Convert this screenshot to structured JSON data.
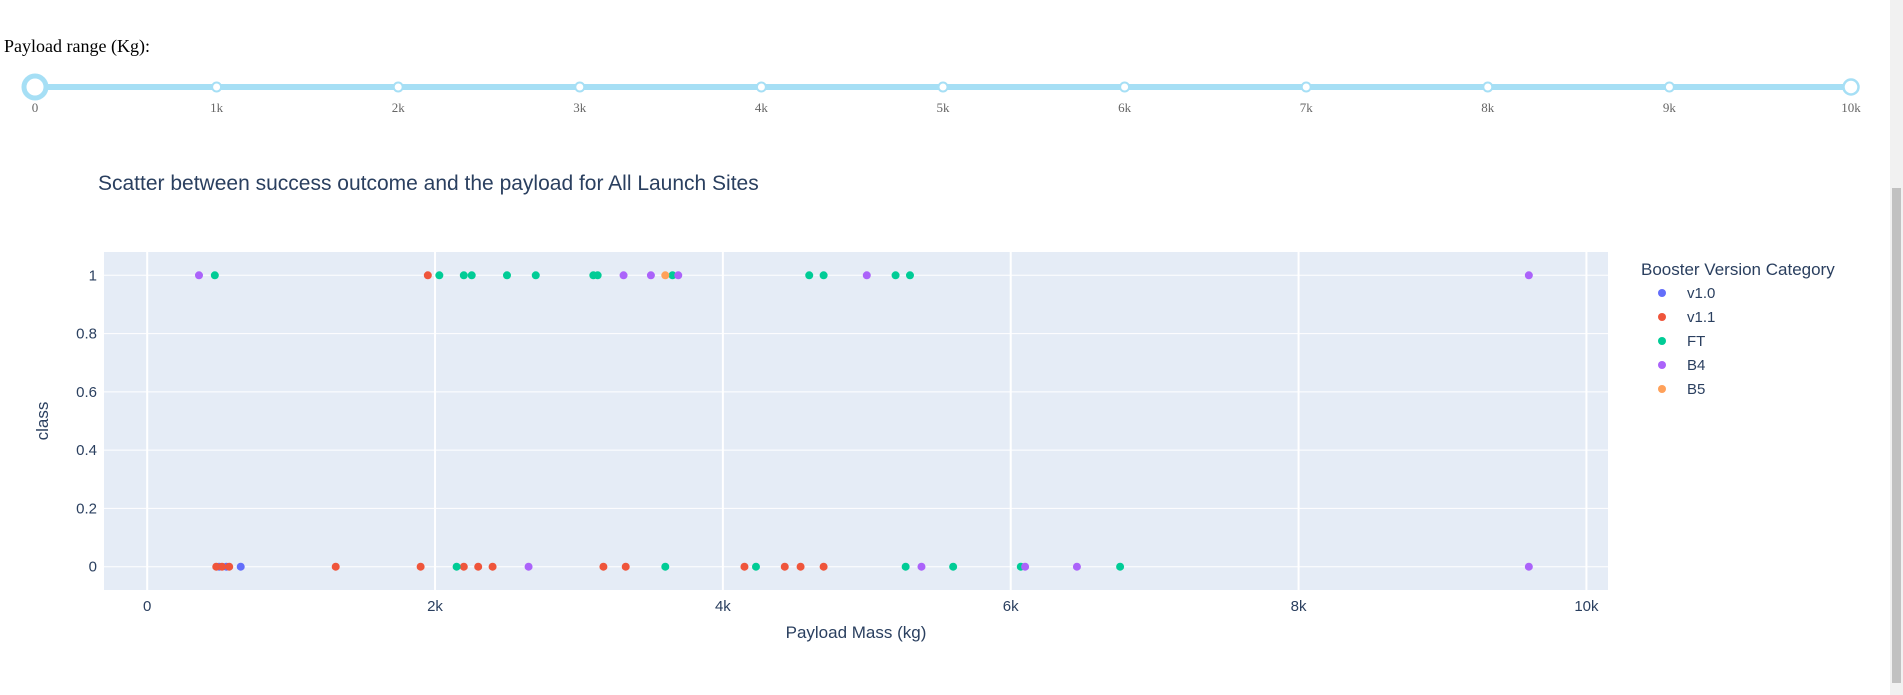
{
  "slider": {
    "label": "Payload range (Kg):",
    "min": 0,
    "max": 10000,
    "value_low": 0,
    "value_high": 10000,
    "marks": [
      "0",
      "1k",
      "2k",
      "3k",
      "4k",
      "5k",
      "6k",
      "7k",
      "8k",
      "9k",
      "10k"
    ],
    "track_color": "#a6dff5",
    "handle_color": "#a6dff5"
  },
  "chart_data": {
    "type": "scatter",
    "title": "Scatter between success outcome and the payload for All Launch Sites",
    "xlabel": "Payload Mass (kg)",
    "ylabel": "class",
    "xlim": [
      -300,
      10150
    ],
    "ylim": [
      -0.08,
      1.08
    ],
    "x_ticks": [
      0,
      2000,
      4000,
      6000,
      8000,
      10000
    ],
    "x_tick_labels": [
      "0",
      "2k",
      "4k",
      "6k",
      "8k",
      "10k"
    ],
    "y_ticks": [
      0,
      0.2,
      0.4,
      0.6,
      0.8,
      1
    ],
    "y_tick_labels": [
      "0",
      "0.2",
      "0.4",
      "0.6",
      "0.8",
      "1"
    ],
    "grid": true,
    "plot_bg": "#e5ecf6",
    "legend_title": "Booster Version Category",
    "legend_position": "right",
    "series": [
      {
        "name": "v1.0",
        "color": "#636efa",
        "x": [
          500,
          550,
          650
        ],
        "y": [
          0,
          0,
          0
        ]
      },
      {
        "name": "v1.1",
        "color": "#ef553b",
        "x": [
          1950,
          480,
          520,
          570,
          1310,
          1900,
          2200,
          2300,
          2400,
          3170,
          3325,
          4150,
          4430,
          4540,
          4700
        ],
        "y": [
          1,
          0,
          0,
          0,
          0,
          0,
          0,
          0,
          0,
          0,
          0,
          0,
          0,
          0,
          0
        ]
      },
      {
        "name": "FT",
        "color": "#00cc96",
        "x": [
          470,
          2030,
          2200,
          2255,
          2500,
          2700,
          3100,
          3130,
          3650,
          4600,
          4700,
          5200,
          5300,
          2150,
          3600,
          4230,
          5270,
          5600,
          6070,
          6760
        ],
        "y": [
          1,
          1,
          1,
          1,
          1,
          1,
          1,
          1,
          1,
          1,
          1,
          1,
          1,
          0,
          0,
          0,
          0,
          0,
          0,
          0
        ]
      },
      {
        "name": "B4",
        "color": "#ab63fa",
        "x": [
          360,
          3310,
          3500,
          3690,
          5000,
          9600,
          2650,
          5380,
          6100,
          6460,
          9600
        ],
        "y": [
          1,
          1,
          1,
          1,
          1,
          1,
          0,
          0,
          0,
          0,
          0
        ]
      },
      {
        "name": "B5",
        "color": "#ffa15a",
        "x": [
          3600
        ],
        "y": [
          1
        ]
      }
    ]
  }
}
